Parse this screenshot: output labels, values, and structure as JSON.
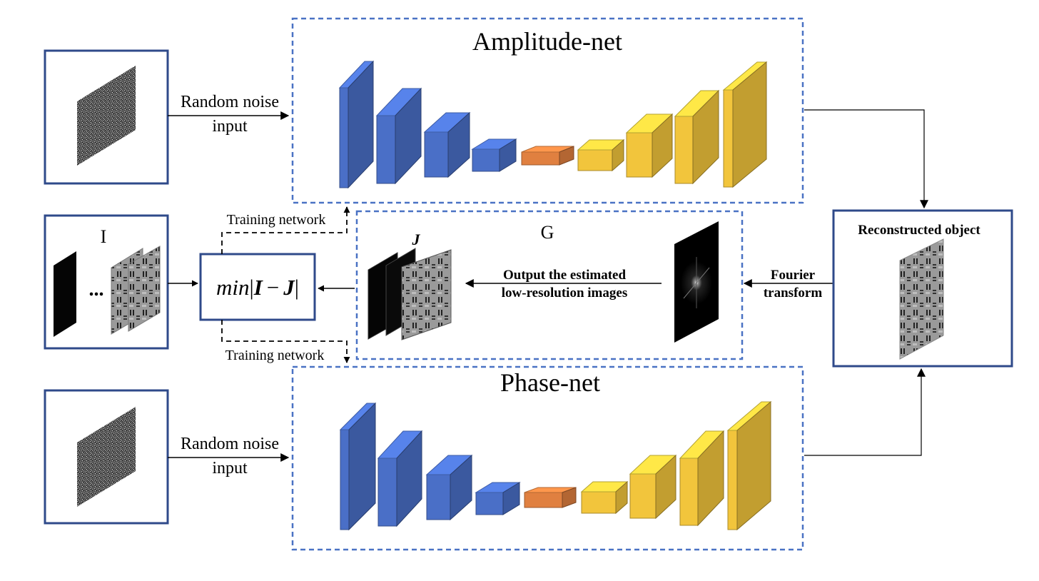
{
  "amplitude_net": {
    "title": "Amplitude-net"
  },
  "phase_net": {
    "title": "Phase-net"
  },
  "noise_input": {
    "line1": "Random noise",
    "line2": "input"
  },
  "measurements": {
    "label": "I",
    "ellipsis": "..."
  },
  "loss": {
    "min": "min",
    "bar_open": "|",
    "I": "I",
    "minus": "−",
    "J": "J",
    "bar_close": "|"
  },
  "training": {
    "top_label": "Training network",
    "bottom_label": "Training network"
  },
  "forward_model": {
    "label": "G",
    "estimate_label": "J",
    "output_line1": "Output the estimated",
    "output_line2": "low-resolution images"
  },
  "fourier": {
    "line1": "Fourier",
    "line2": "transform"
  },
  "reconstructed": {
    "title": "Reconstructed object"
  },
  "colors": {
    "box_border": "#2f4a8a",
    "dashed_border": "#4a72c4",
    "encoder": "#4a6fc7",
    "bottleneck": "#e08040",
    "decoder": "#f2c53c",
    "arrow": "#000000"
  }
}
